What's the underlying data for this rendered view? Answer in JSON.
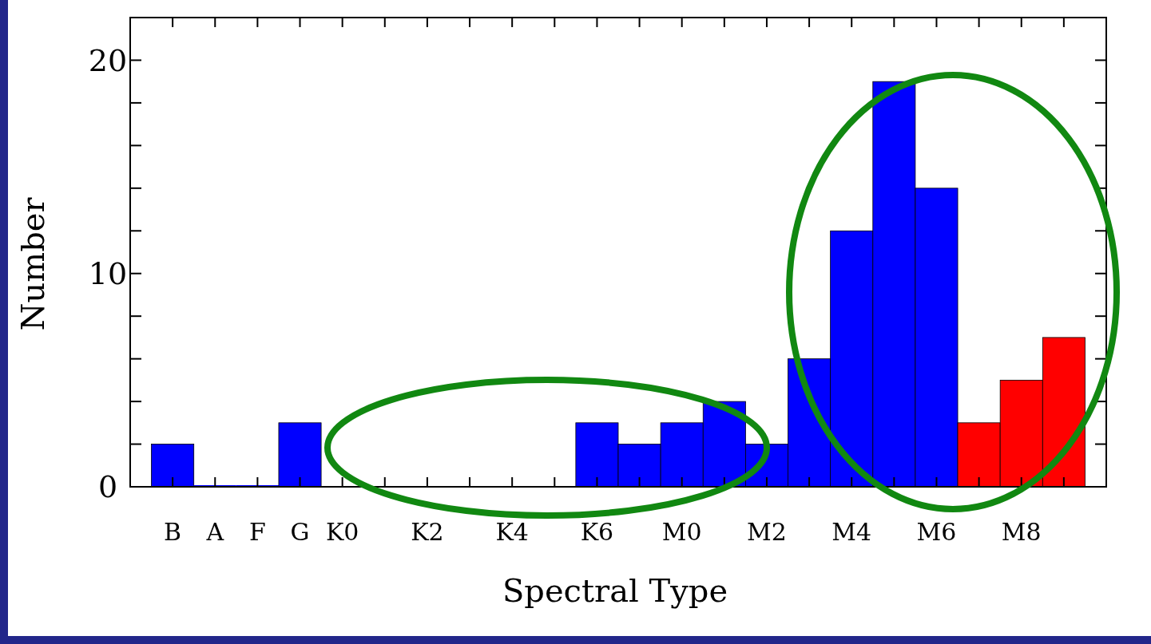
{
  "chart_data": {
    "type": "bar",
    "xlabel": "Spectral Type",
    "ylabel": "Number",
    "categories": [
      "B",
      "A",
      "F",
      "G",
      "K0",
      null,
      "K2",
      null,
      "K4",
      null,
      "K6",
      null,
      "M0",
      null,
      "M2",
      null,
      "M4",
      null,
      "M6",
      null,
      "M8",
      null
    ],
    "series": [
      {
        "color": "#0000ff",
        "values": [
          2,
          0,
          0,
          3,
          null,
          null,
          null,
          null,
          null,
          null,
          3,
          2,
          3,
          4,
          2,
          6,
          12,
          19,
          14,
          null,
          null,
          null
        ]
      },
      {
        "color": "#ff0000",
        "values": [
          null,
          null,
          null,
          null,
          null,
          null,
          null,
          null,
          null,
          null,
          null,
          null,
          null,
          null,
          null,
          null,
          null,
          null,
          null,
          3,
          5,
          7
        ]
      }
    ],
    "ylim": [
      0,
      22
    ],
    "yticks": [
      0,
      {
        "value": 2,
        "label": null
      },
      {
        "value": 4,
        "label": null
      },
      {
        "value": 6,
        "label": null
      },
      {
        "value": 8,
        "label": null
      },
      10,
      {
        "value": 12,
        "label": null
      },
      {
        "value": 14,
        "label": null
      },
      {
        "value": 16,
        "label": null
      },
      {
        "value": 18,
        "label": null
      },
      20
    ],
    "grid": false
  }
}
